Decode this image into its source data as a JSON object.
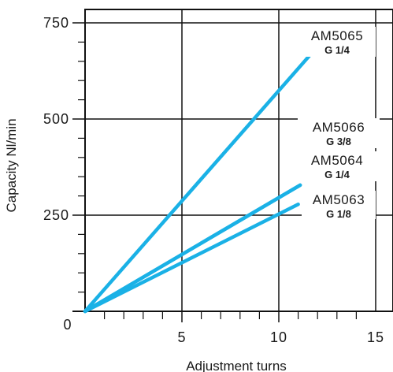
{
  "chart_data": {
    "type": "line",
    "xlabel": "Adjustment turns",
    "ylabel": "Capacity Nl/min",
    "xlim": [
      0,
      15
    ],
    "ylim": [
      0,
      750
    ],
    "x_ticks": [
      "0",
      "5",
      "10",
      "15"
    ],
    "y_ticks": [
      "250",
      "500",
      "750"
    ],
    "grid": true,
    "line_color": "#1ab1e6",
    "series": [
      {
        "name": "AM5065",
        "thread": "G 1/4",
        "x": [
          0,
          12.2
        ],
        "y": [
          0,
          700
        ]
      },
      {
        "name": "AM5066",
        "thread": "G 3/8",
        "x": [
          0,
          11.1
        ],
        "y": [
          0,
          328
        ]
      },
      {
        "name": "AM5064",
        "thread": "G 1/4",
        "x": [
          0,
          11.1
        ],
        "y": [
          0,
          328
        ]
      },
      {
        "name": "AM5063",
        "thread": "G 1/8",
        "x": [
          0,
          11.0
        ],
        "y": [
          0,
          278
        ]
      }
    ]
  }
}
